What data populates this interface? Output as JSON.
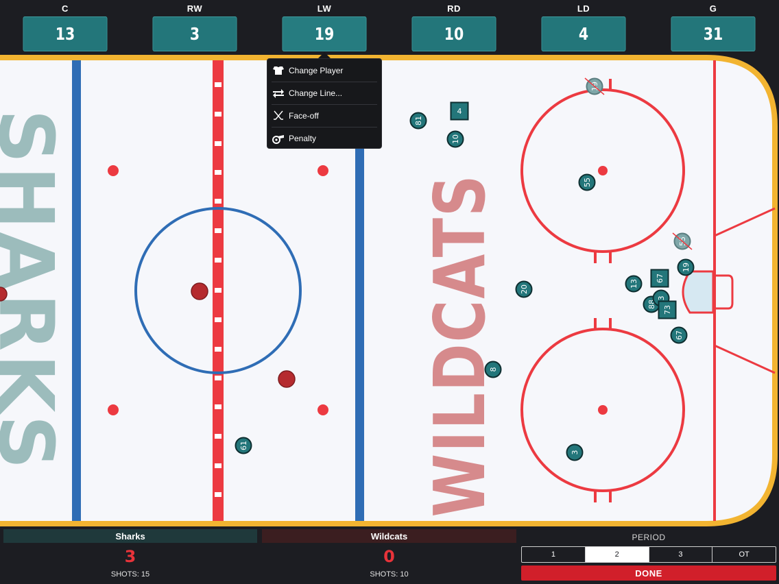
{
  "positions": [
    {
      "label": "C",
      "number": "13"
    },
    {
      "label": "RW",
      "number": "3"
    },
    {
      "label": "LW",
      "number": "19"
    },
    {
      "label": "RD",
      "number": "10"
    },
    {
      "label": "LD",
      "number": "4"
    },
    {
      "label": "G",
      "number": "31"
    }
  ],
  "menu": {
    "items": [
      {
        "label": "Change Player",
        "icon": "jersey-icon"
      },
      {
        "label": "Change Line...",
        "icon": "swap-icon"
      },
      {
        "label": "Face-off",
        "icon": "crossed-sticks-icon"
      },
      {
        "label": "Penalty",
        "icon": "whistle-icon"
      }
    ]
  },
  "rink": {
    "left_end_text": "SHARKS",
    "right_end_text": "WILDCATS",
    "markers": [
      {
        "label": "81",
        "shape": "circle",
        "crossed": false
      },
      {
        "label": "4",
        "shape": "square",
        "crossed": false
      },
      {
        "label": "10",
        "shape": "circle",
        "crossed": false
      },
      {
        "label": "19",
        "shape": "circle",
        "crossed": true
      },
      {
        "label": "55",
        "shape": "circle",
        "crossed": false
      },
      {
        "label": "55",
        "shape": "circle",
        "crossed": true
      },
      {
        "label": "19",
        "shape": "circle",
        "crossed": false
      },
      {
        "label": "13",
        "shape": "circle",
        "crossed": false
      },
      {
        "label": "67",
        "shape": "square",
        "crossed": false
      },
      {
        "label": "88",
        "shape": "circle",
        "crossed": false
      },
      {
        "label": "3",
        "shape": "circle",
        "crossed": false
      },
      {
        "label": "73",
        "shape": "square",
        "crossed": false
      },
      {
        "label": "67",
        "shape": "circle",
        "crossed": false
      },
      {
        "label": "20",
        "shape": "circle",
        "crossed": false
      },
      {
        "label": "8",
        "shape": "circle",
        "crossed": false
      },
      {
        "label": "3",
        "shape": "circle",
        "crossed": false
      },
      {
        "label": "61",
        "shape": "circle",
        "crossed": false
      }
    ]
  },
  "teams": {
    "home": {
      "name": "Sharks",
      "score": "3",
      "shots": "SHOTS: 15"
    },
    "away": {
      "name": "Wildcats",
      "score": "0",
      "shots": "SHOTS: 10"
    }
  },
  "period": {
    "label": "PERIOD",
    "options": [
      "1",
      "2",
      "3",
      "OT"
    ],
    "selected": "2",
    "done_label": "DONE"
  },
  "colors": {
    "teal": "#23767a",
    "red": "#e8333a",
    "done": "#d11f2a",
    "rink_border": "#f2b431"
  }
}
